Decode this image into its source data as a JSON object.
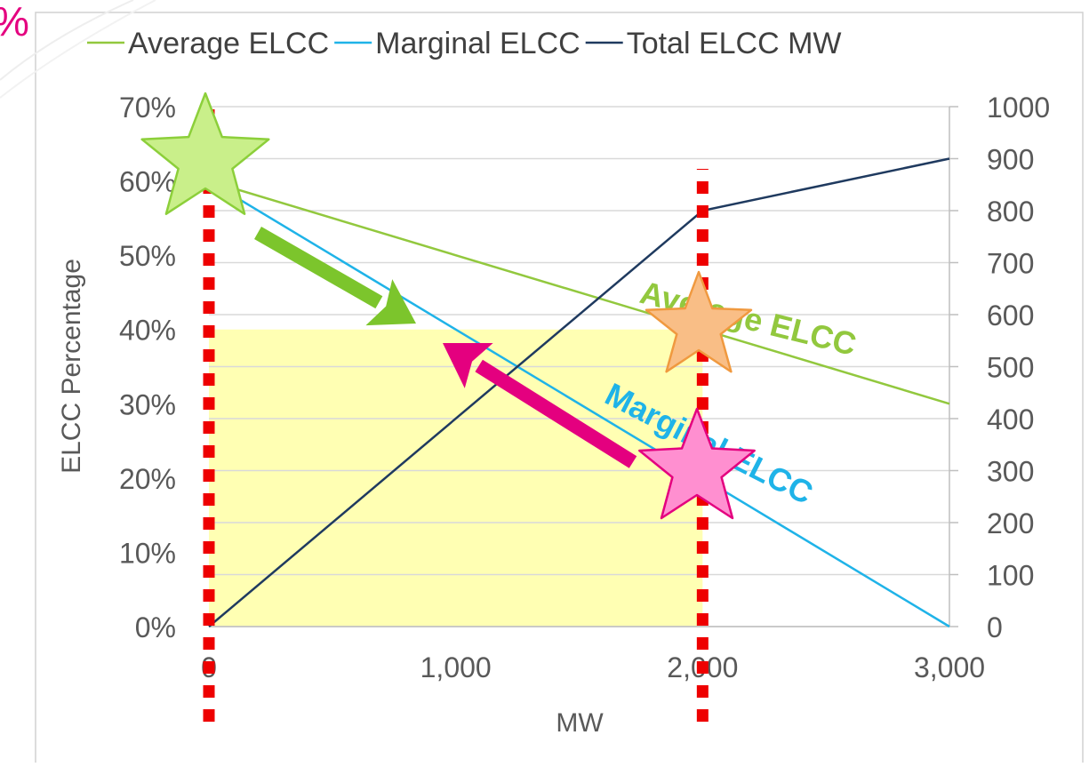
{
  "corner_text": "%",
  "chart_data": {
    "type": "line",
    "xlabel": "MW",
    "ylabel": "ELCC Percentage",
    "x_ticks": [
      "0",
      "1,000",
      "2,000",
      "3,000"
    ],
    "y_ticks": [
      "0%",
      "10%",
      "20%",
      "30%",
      "40%",
      "50%",
      "60%",
      "70%"
    ],
    "y2_ticks": [
      "0",
      "100",
      "200",
      "300",
      "400",
      "500",
      "600",
      "700",
      "800",
      "900",
      "1000"
    ],
    "xlim": [
      0,
      3000
    ],
    "ylim": [
      0,
      0.7
    ],
    "y2lim": [
      0,
      1000
    ],
    "grid": true,
    "legend_position": "top",
    "series": [
      {
        "name": "Average ELCC",
        "color": "#92c83e",
        "axis": "left",
        "x": [
          0,
          3000
        ],
        "y": [
          0.6,
          0.3
        ]
      },
      {
        "name": "Marginal ELCC",
        "color": "#1fb3e8",
        "axis": "left",
        "x": [
          0,
          3000
        ],
        "y": [
          0.6,
          0.0
        ]
      },
      {
        "name": "Total ELCC MW",
        "color": "#1f3a5f",
        "axis": "right",
        "x": [
          0,
          2000,
          3000
        ],
        "y": [
          0,
          800,
          900
        ]
      }
    ],
    "shaded_region": {
      "x": [
        0,
        2000
      ],
      "y": [
        0,
        0.4
      ],
      "color": "#ffff99"
    },
    "annotations": [
      {
        "text": "Average ELCC",
        "color": "#92c83e"
      },
      {
        "text": "Marginal ELCC",
        "color": "#1fb3e8"
      }
    ]
  }
}
